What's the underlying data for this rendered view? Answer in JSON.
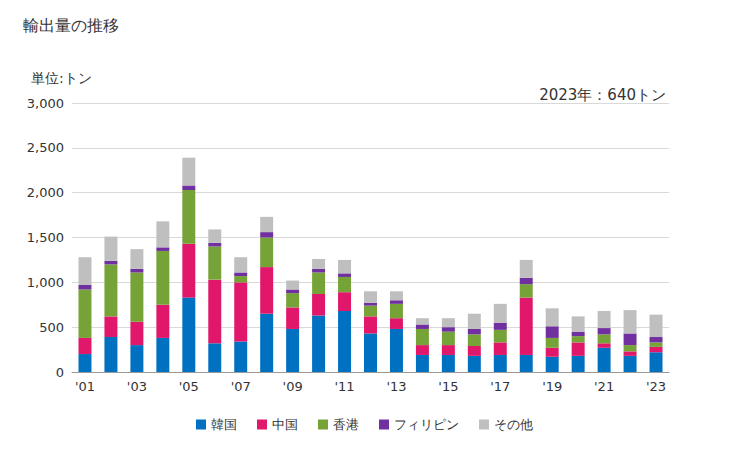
{
  "chart_data": {
    "type": "bar",
    "title": "輸出量の推移",
    "unit_label": "単位:トン",
    "annotation": "2023年：640トン",
    "stacked": true,
    "grid": true,
    "legend": "bottom",
    "categories": [
      "'01",
      null,
      "'03",
      null,
      "'05",
      null,
      "'07",
      null,
      "'09",
      null,
      "'11",
      null,
      "'13",
      null,
      "'15",
      null,
      "'17",
      null,
      "'19",
      null,
      "'21",
      null,
      "'23"
    ],
    "ylim": [
      0,
      3000
    ],
    "yticks": [
      0,
      500,
      {
        "value": 1000,
        "label": "1,000"
      },
      {
        "value": 1500,
        "label": "1,500"
      },
      {
        "value": 2000,
        "label": "2,000"
      },
      {
        "value": 2500,
        "label": "2,500"
      },
      {
        "value": 3000,
        "label": "3,000"
      }
    ],
    "series": [
      {
        "name": "韓国",
        "color": "#0070c0",
        "values": [
          200,
          390,
          300,
          380,
          830,
          320,
          340,
          650,
          480,
          630,
          680,
          430,
          480,
          190,
          190,
          180,
          190,
          190,
          170,
          180,
          270,
          180,
          220
        ]
      },
      {
        "name": "中国",
        "color": "#e0176a",
        "values": [
          180,
          230,
          260,
          370,
          600,
          710,
          660,
          520,
          240,
          240,
          210,
          190,
          120,
          110,
          110,
          110,
          140,
          640,
          100,
          150,
          50,
          50,
          60
        ]
      },
      {
        "name": "香港",
        "color": "#76a338",
        "values": [
          540,
          580,
          550,
          600,
          600,
          370,
          70,
          330,
          160,
          240,
          170,
          120,
          160,
          180,
          150,
          130,
          140,
          150,
          110,
          70,
          100,
          70,
          50
        ]
      },
      {
        "name": "フィリピン",
        "color": "#7030a0",
        "values": [
          50,
          40,
          40,
          40,
          50,
          40,
          40,
          60,
          40,
          40,
          40,
          30,
          40,
          50,
          50,
          60,
          80,
          70,
          130,
          50,
          70,
          130,
          60
        ]
      },
      {
        "name": "その他",
        "color": "#bfbfbf",
        "values": [
          310,
          270,
          220,
          290,
          310,
          150,
          170,
          170,
          100,
          110,
          150,
          130,
          100,
          70,
          100,
          170,
          210,
          200,
          200,
          170,
          190,
          260,
          250
        ]
      }
    ]
  }
}
